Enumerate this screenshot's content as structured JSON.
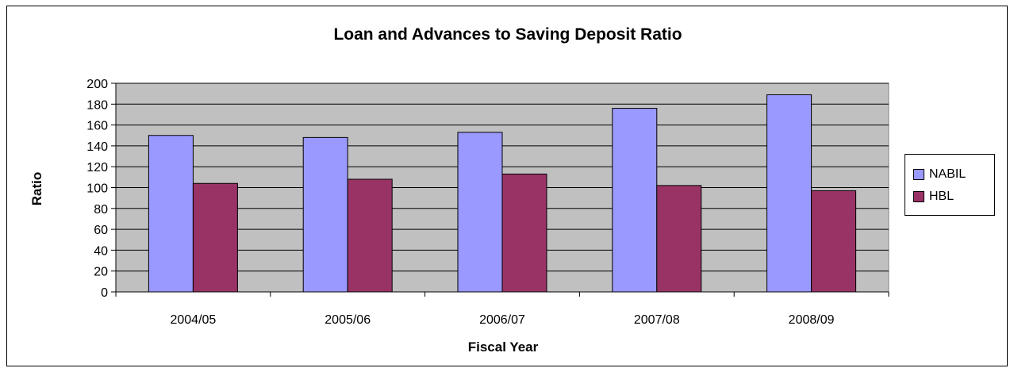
{
  "chart_data": {
    "type": "bar",
    "title": "Loan and Advances to Saving Deposit Ratio",
    "xlabel": "Fiscal Year",
    "ylabel": "Ratio",
    "categories": [
      "2004/05",
      "2005/06",
      "2006/07",
      "2007/08",
      "2008/09"
    ],
    "series": [
      {
        "name": "NABIL",
        "color": "#9999FF",
        "values": [
          150,
          148,
          153,
          176,
          189
        ]
      },
      {
        "name": "HBL",
        "color": "#993366",
        "values": [
          104,
          108,
          113,
          102,
          97
        ]
      }
    ],
    "ylim": [
      0,
      200
    ],
    "yticks": [
      0,
      20,
      40,
      60,
      80,
      100,
      120,
      140,
      160,
      180,
      200
    ],
    "grid": true,
    "plot_background": "#C0C0C0",
    "legend_position": "right"
  }
}
